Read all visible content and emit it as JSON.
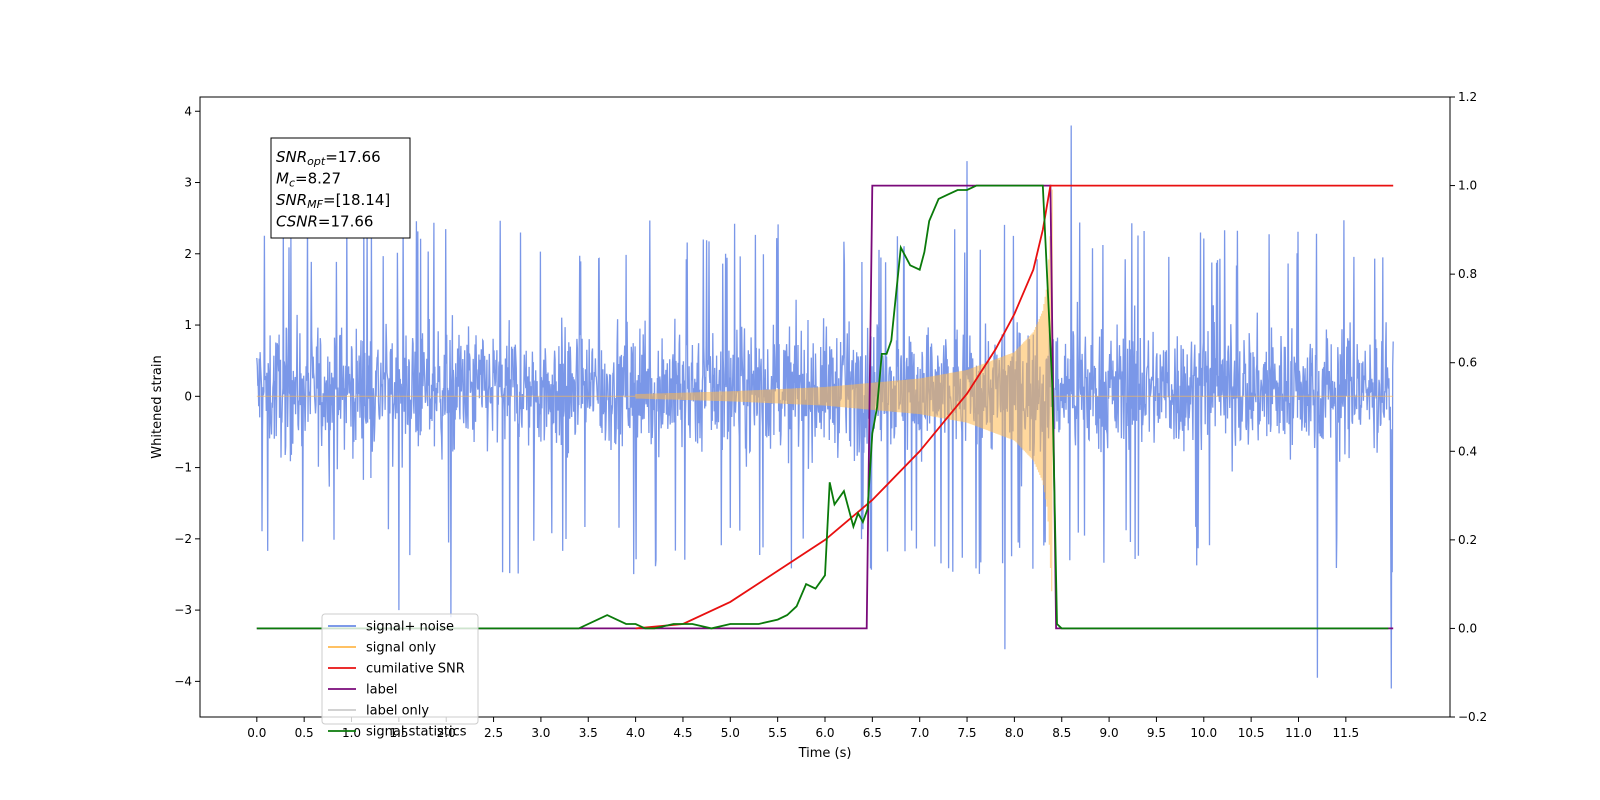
{
  "chart_data": {
    "type": "line",
    "xlabel": "Time (s)",
    "ylabel_left": "Whitened strain",
    "xlim": [
      -0.6,
      12.6
    ],
    "ylim_left": [
      -4.5,
      4.2
    ],
    "ylim_right": [
      -0.2,
      1.2
    ],
    "x_ticks": [
      0.0,
      0.5,
      1.0,
      1.5,
      2.0,
      2.5,
      3.0,
      3.5,
      4.0,
      4.5,
      5.0,
      5.5,
      6.0,
      6.5,
      7.0,
      7.5,
      8.0,
      8.5,
      9.0,
      9.5,
      10.0,
      10.5,
      11.0,
      11.5
    ],
    "x_tick_labels": [
      "0.0",
      "0.5",
      "1.0",
      "1.5",
      "2.0",
      "2.5",
      "3.0",
      "3.5",
      "4.0",
      "4.5",
      "5.0",
      "5.5",
      "6.0",
      "6.5",
      "7.0",
      "7.5",
      "8.0",
      "8.5",
      "9.0",
      "9.5",
      "10.0",
      "10.5",
      "11.0",
      "11.5"
    ],
    "y_left_ticks": [
      -4,
      -3,
      -2,
      -1,
      0,
      1,
      2,
      3,
      4
    ],
    "y_left_tick_labels": [
      "−4",
      "−3",
      "−2",
      "−1",
      "0",
      "1",
      "2",
      "3",
      "4"
    ],
    "y_right_ticks": [
      -0.2,
      0.0,
      0.2,
      0.4,
      0.6,
      0.8,
      1.0,
      1.2
    ],
    "y_right_tick_labels": [
      "−0.2",
      "0.0",
      "0.2",
      "0.4",
      "0.6",
      "0.8",
      "1.0",
      "1.2"
    ],
    "annotation": {
      "lines": [
        {
          "sym": "SNR",
          "sub": "opt",
          "val": "=17.66"
        },
        {
          "sym": "M",
          "sub": "c",
          "val": "=8.27"
        },
        {
          "sym": "SNR",
          "sub": "MF",
          "val": "=[18.14]"
        },
        {
          "sym": "CSNR",
          "sub": "",
          "val": "=17.66"
        }
      ]
    },
    "legend": {
      "placement": "lower-left",
      "entries": [
        {
          "label": "signal+ noise",
          "color": "#6c8ce6"
        },
        {
          "label": "signal only",
          "color": "#ffb84d"
        },
        {
          "label": "cumilative SNR",
          "color": "#e81010"
        },
        {
          "label": "label",
          "color": "#7a0a7a"
        },
        {
          "label": "label only",
          "color": "#cccccc"
        },
        {
          "label": "signal statistics",
          "color": "#0a7a0a"
        }
      ]
    },
    "series": [
      {
        "name": "signal+ noise",
        "axis": "left",
        "color": "#6c8ce6",
        "x_range": [
          0.0,
          12.0
        ],
        "typical_envelope": [
          -2.0,
          2.2
        ],
        "extremes": [
          [
            8.6,
            3.8
          ],
          [
            7.5,
            3.3
          ],
          [
            11.2,
            -3.95
          ],
          [
            11.98,
            -4.1
          ],
          [
            7.9,
            -3.55
          ],
          [
            1.5,
            -3.0
          ],
          [
            2.05,
            -3.1
          ]
        ]
      },
      {
        "name": "signal only",
        "axis": "left",
        "color": "#ffb84d",
        "chirp_start": 4.0,
        "chirp_end": 8.4,
        "envelope_x": [
          4.0,
          5.0,
          6.0,
          7.0,
          7.5,
          8.0,
          8.2,
          8.3,
          8.35,
          8.4
        ],
        "envelope_amp": [
          0.03,
          0.07,
          0.13,
          0.25,
          0.37,
          0.62,
          0.9,
          1.2,
          1.6,
          2.9
        ]
      },
      {
        "name": "cumilative SNR",
        "axis": "right",
        "color": "#e81010",
        "x": [
          4.0,
          4.5,
          5.0,
          5.5,
          6.0,
          6.5,
          7.0,
          7.5,
          7.8,
          8.0,
          8.2,
          8.3,
          8.38,
          8.42,
          12.0
        ],
        "y": [
          0.0,
          0.01,
          0.06,
          0.13,
          0.2,
          0.29,
          0.4,
          0.53,
          0.63,
          0.71,
          0.81,
          0.9,
          1.0,
          1.0,
          1.0
        ]
      },
      {
        "name": "label",
        "axis": "right",
        "color": "#7a0a7a",
        "x": [
          0.0,
          6.44,
          6.5,
          8.38,
          8.44,
          12.0
        ],
        "y": [
          0.0,
          0.0,
          1.0,
          1.0,
          0.0,
          0.0
        ]
      },
      {
        "name": "signal statistics",
        "axis": "right",
        "color": "#0a7a0a",
        "x": [
          0.0,
          3.4,
          3.6,
          3.7,
          3.8,
          3.9,
          4.0,
          4.1,
          4.2,
          4.4,
          4.6,
          4.8,
          5.0,
          5.1,
          5.3,
          5.5,
          5.6,
          5.7,
          5.8,
          5.9,
          6.0,
          6.05,
          6.1,
          6.2,
          6.3,
          6.35,
          6.4,
          6.45,
          6.5,
          6.55,
          6.6,
          6.65,
          6.7,
          6.8,
          6.9,
          7.0,
          7.05,
          7.1,
          7.2,
          7.3,
          7.4,
          7.5,
          7.6,
          7.7,
          8.3,
          8.4,
          8.45,
          8.5,
          11.95
        ],
        "y": [
          0.0,
          0.0,
          0.02,
          0.03,
          0.02,
          0.01,
          0.01,
          0.0,
          0.0,
          0.01,
          0.01,
          0.0,
          0.01,
          0.01,
          0.01,
          0.02,
          0.03,
          0.05,
          0.1,
          0.09,
          0.12,
          0.33,
          0.28,
          0.31,
          0.23,
          0.26,
          0.24,
          0.27,
          0.44,
          0.5,
          0.62,
          0.62,
          0.65,
          0.86,
          0.82,
          0.81,
          0.85,
          0.92,
          0.97,
          0.98,
          0.99,
          0.99,
          1.0,
          1.0,
          1.0,
          0.55,
          0.01,
          0.0,
          0.0
        ]
      }
    ]
  }
}
